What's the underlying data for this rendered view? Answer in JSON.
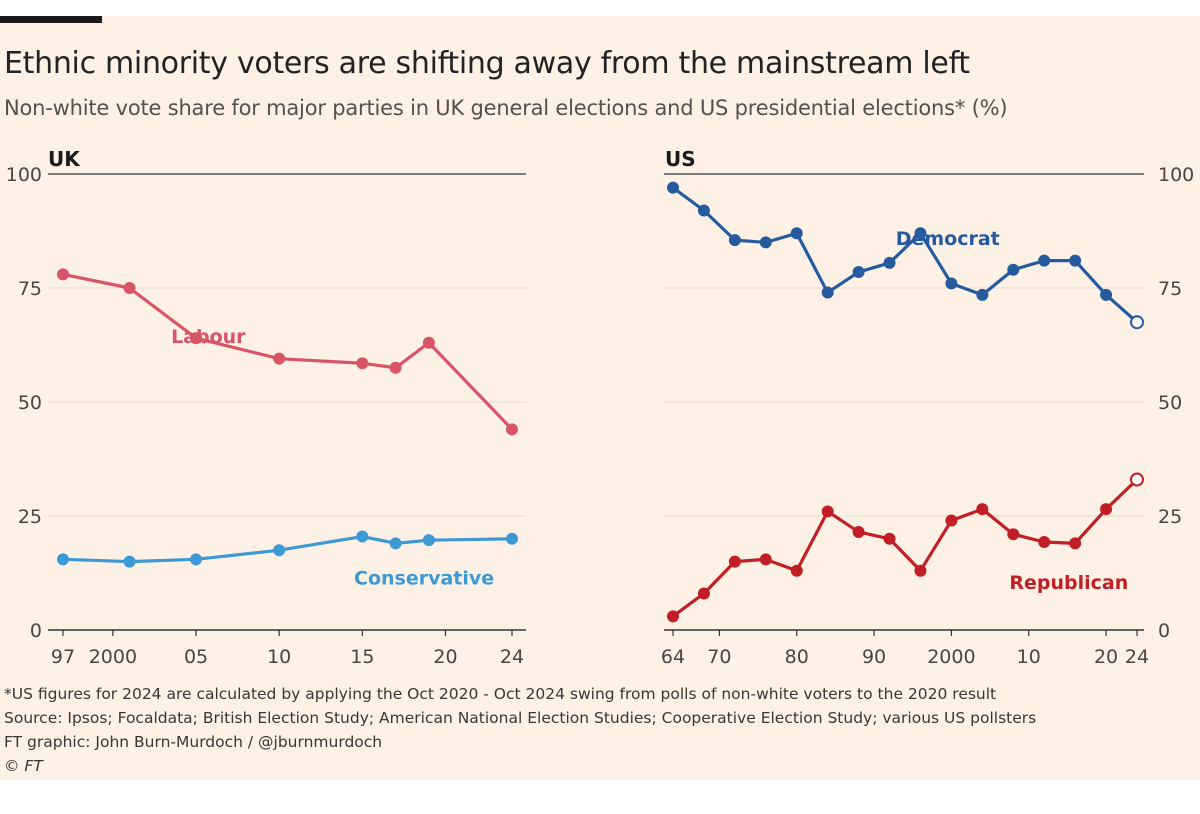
{
  "title": "Ethnic minority voters are shifting away from the mainstream left",
  "subtitle": "Non-white vote share for major parties in UK general elections and US presidential elections* (%)",
  "footnote": "*US figures for 2024 are calculated by applying the Oct 2020 - Oct 2024 swing from polls of non-white voters to the 2020 result",
  "source": "Source: Ipsos; Focaldata; British Election Study; American National Election Studies; Cooperative Election Study; various US pollsters",
  "credit": "FT graphic: John Burn-Murdoch / @jburnmurdoch",
  "copyright": "© FT",
  "colors": {
    "background": "#fdf1e6",
    "labour": "#d85468",
    "conservative": "#3d99d4",
    "democrat": "#265a9e",
    "republican": "#c21e26",
    "axis": "#333333",
    "grid": "#e6dbd0"
  },
  "chart_data": [
    {
      "type": "line",
      "title": "UK",
      "xlim": [
        1997,
        2024
      ],
      "ylim": [
        0,
        100
      ],
      "yticks": [
        0,
        25,
        50,
        75,
        100
      ],
      "xticks": [
        1997,
        2000,
        2005,
        2010,
        2015,
        2020,
        2024
      ],
      "xtick_labels": [
        "97",
        "2000",
        "05",
        "10",
        "15",
        "20",
        "24"
      ],
      "x": [
        1997,
        2001,
        2005,
        2010,
        2015,
        2017,
        2019,
        2024
      ],
      "series": [
        {
          "name": "Labour",
          "color": "#d85468",
          "values": [
            78,
            75,
            64,
            59.5,
            58.5,
            57.5,
            63,
            44
          ]
        },
        {
          "name": "Conservative",
          "color": "#3d99d4",
          "values": [
            15.5,
            15,
            15.5,
            17.5,
            20.5,
            19,
            19.7,
            20
          ]
        }
      ]
    },
    {
      "type": "line",
      "title": "US",
      "xlim": [
        1964,
        2024
      ],
      "ylim": [
        0,
        100
      ],
      "yticks": [
        0,
        25,
        50,
        75,
        100
      ],
      "xticks": [
        1964,
        1970,
        1980,
        1990,
        2000,
        2010,
        2020,
        2024
      ],
      "xtick_labels": [
        "64",
        "70",
        "80",
        "90",
        "2000",
        "10",
        "20",
        "24"
      ],
      "x": [
        1964,
        1968,
        1972,
        1976,
        1980,
        1984,
        1988,
        1992,
        1996,
        2000,
        2004,
        2008,
        2012,
        2016,
        2020,
        2024
      ],
      "estimated_last_point": true,
      "series": [
        {
          "name": "Democrat",
          "color": "#265a9e",
          "values": [
            97,
            92,
            85.5,
            85,
            87,
            74,
            78.5,
            80.5,
            87,
            76,
            73.5,
            79,
            81,
            81,
            73.5,
            67.5
          ]
        },
        {
          "name": "Republican",
          "color": "#c21e26",
          "values": [
            3,
            8,
            15,
            15.5,
            13,
            26,
            21.5,
            20,
            13,
            24,
            26.5,
            21,
            19.3,
            19,
            26.5,
            33
          ]
        }
      ]
    }
  ]
}
